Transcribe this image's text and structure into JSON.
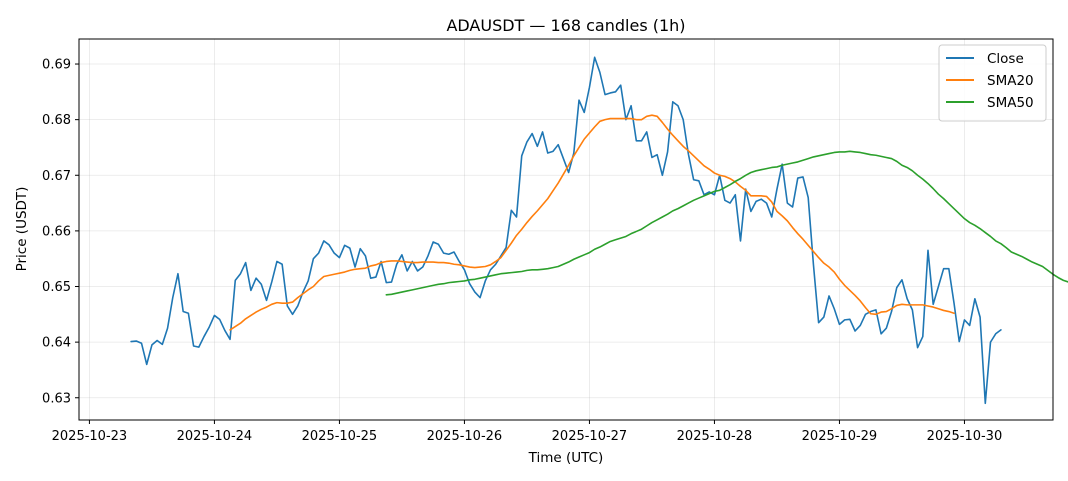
{
  "chart_data": {
    "type": "line",
    "title": "ADAUSDT — 168 candles (1h)",
    "xlabel": "Time (UTC)",
    "ylabel": "Price (USDT)",
    "x_ticks": [
      "2025-10-23",
      "2025-10-24",
      "2025-10-25",
      "2025-10-26",
      "2025-10-27",
      "2025-10-28",
      "2025-10-29",
      "2025-10-30"
    ],
    "y_ticks": [
      0.63,
      0.64,
      0.65,
      0.66,
      0.67,
      0.68,
      0.69
    ],
    "x_start": "2025-10-23 08:00",
    "x_end": "2025-10-30 07:00",
    "xlim": [
      "2025-10-22 22:00",
      "2025-10-30 17:00"
    ],
    "ylim": [
      0.626,
      0.6945
    ],
    "grid": true,
    "legend_position": "top-right",
    "series": [
      {
        "name": "Close",
        "color": "#1f77b4",
        "start_index": 0,
        "values": [
          0.6401,
          0.6402,
          0.6398,
          0.636,
          0.6395,
          0.6403,
          0.6396,
          0.6425,
          0.648,
          0.6523,
          0.6455,
          0.6452,
          0.6393,
          0.6391,
          0.641,
          0.6427,
          0.6448,
          0.6441,
          0.6421,
          0.6405,
          0.6511,
          0.6523,
          0.6543,
          0.6493,
          0.6515,
          0.6504,
          0.6475,
          0.6508,
          0.6545,
          0.654,
          0.6465,
          0.645,
          0.6465,
          0.649,
          0.651,
          0.655,
          0.656,
          0.6582,
          0.6575,
          0.656,
          0.6552,
          0.6574,
          0.6569,
          0.6535,
          0.6568,
          0.6555,
          0.6515,
          0.6517,
          0.6545,
          0.6507,
          0.6508,
          0.654,
          0.6557,
          0.6528,
          0.6545,
          0.6528,
          0.6535,
          0.6555,
          0.658,
          0.6576,
          0.656,
          0.6558,
          0.6562,
          0.6545,
          0.653,
          0.6505,
          0.649,
          0.648,
          0.651,
          0.653,
          0.654,
          0.6555,
          0.657,
          0.6637,
          0.6625,
          0.6735,
          0.676,
          0.6775,
          0.6752,
          0.6778,
          0.674,
          0.6743,
          0.6755,
          0.673,
          0.6705,
          0.674,
          0.6835,
          0.6813,
          0.6858,
          0.6912,
          0.6885,
          0.6845,
          0.6848,
          0.685,
          0.6862,
          0.68,
          0.6825,
          0.6762,
          0.6762,
          0.6778,
          0.6732,
          0.6737,
          0.67,
          0.6742,
          0.6832,
          0.6825,
          0.68,
          0.6738,
          0.6692,
          0.669,
          0.6665,
          0.667,
          0.6665,
          0.67,
          0.6655,
          0.665,
          0.6665,
          0.6582,
          0.6675,
          0.6635,
          0.6653,
          0.6657,
          0.665,
          0.6625,
          0.6675,
          0.672,
          0.665,
          0.6643,
          0.6695,
          0.6697,
          0.666,
          0.654,
          0.6435,
          0.6445,
          0.6483,
          0.646,
          0.6432,
          0.644,
          0.6441,
          0.642,
          0.643,
          0.645,
          0.6455,
          0.6458,
          0.6415,
          0.6425,
          0.6455,
          0.6498,
          0.6512,
          0.6478,
          0.6458,
          0.639,
          0.641,
          0.6565,
          0.6468,
          0.65,
          0.6532,
          0.6532,
          0.647,
          0.6401,
          0.644,
          0.643,
          0.6478,
          0.6445,
          0.629,
          0.64,
          0.6415,
          0.6422
        ]
      },
      {
        "name": "SMA20",
        "color": "#ff7f0e",
        "start_index": 19,
        "values": [
          0.6422,
          0.6428,
          0.6434,
          0.6442,
          0.6448,
          0.6454,
          0.6459,
          0.6463,
          0.6468,
          0.6471,
          0.647,
          0.647,
          0.6472,
          0.648,
          0.6487,
          0.6494,
          0.65,
          0.651,
          0.6518,
          0.652,
          0.6522,
          0.6524,
          0.6526,
          0.6529,
          0.6531,
          0.6532,
          0.6533,
          0.6537,
          0.6539,
          0.6543,
          0.6545,
          0.6546,
          0.6546,
          0.6545,
          0.6544,
          0.6543,
          0.6543,
          0.6544,
          0.6544,
          0.6544,
          0.6543,
          0.6543,
          0.6542,
          0.654,
          0.6539,
          0.6537,
          0.6535,
          0.6534,
          0.6535,
          0.6536,
          0.6539,
          0.6545,
          0.6552,
          0.6565,
          0.6578,
          0.6592,
          0.6603,
          0.6615,
          0.6626,
          0.6636,
          0.6647,
          0.6658,
          0.6672,
          0.6686,
          0.6702,
          0.6718,
          0.6735,
          0.675,
          0.6765,
          0.6776,
          0.6787,
          0.6797,
          0.68,
          0.6802,
          0.6802,
          0.6802,
          0.6802,
          0.6802,
          0.68,
          0.68,
          0.6806,
          0.6808,
          0.6806,
          0.6795,
          0.6783,
          0.6772,
          0.6762,
          0.6752,
          0.6744,
          0.6735,
          0.6726,
          0.6717,
          0.6711,
          0.6704,
          0.67,
          0.6698,
          0.6694,
          0.6688,
          0.668,
          0.6673,
          0.6663,
          0.6663,
          0.6663,
          0.6662,
          0.6652,
          0.6635,
          0.6627,
          0.6618,
          0.6606,
          0.6595,
          0.6585,
          0.6574,
          0.6563,
          0.6552,
          0.6542,
          0.6535,
          0.6526,
          0.6513,
          0.6502,
          0.6493,
          0.6484,
          0.6474,
          0.6462,
          0.6451,
          0.645,
          0.6454,
          0.6455,
          0.646,
          0.6466,
          0.6468,
          0.6467,
          0.6467,
          0.6467,
          0.6467,
          0.6465,
          0.6463,
          0.646,
          0.6457,
          0.6455,
          0.6452
        ]
      },
      {
        "name": "SMA50",
        "color": "#2ca02c",
        "start_index": 49,
        "values": [
          0.6485,
          0.6486,
          0.6488,
          0.649,
          0.6492,
          0.6494,
          0.6496,
          0.6498,
          0.65,
          0.6502,
          0.6504,
          0.6505,
          0.6507,
          0.6508,
          0.6509,
          0.651,
          0.6512,
          0.6513,
          0.6515,
          0.6517,
          0.6519,
          0.6521,
          0.6523,
          0.6524,
          0.6525,
          0.6526,
          0.6527,
          0.6529,
          0.653,
          0.653,
          0.6531,
          0.6532,
          0.6534,
          0.6536,
          0.654,
          0.6544,
          0.6549,
          0.6553,
          0.6557,
          0.6561,
          0.6567,
          0.6571,
          0.6576,
          0.6581,
          0.6584,
          0.6587,
          0.659,
          0.6595,
          0.6599,
          0.6603,
          0.6609,
          0.6615,
          0.662,
          0.6625,
          0.663,
          0.6636,
          0.664,
          0.6645,
          0.665,
          0.6655,
          0.6659,
          0.6663,
          0.6667,
          0.6671,
          0.6673,
          0.6678,
          0.6683,
          0.6689,
          0.6694,
          0.67,
          0.6705,
          0.6708,
          0.671,
          0.6712,
          0.6714,
          0.6715,
          0.6718,
          0.672,
          0.6722,
          0.6724,
          0.6727,
          0.673,
          0.6733,
          0.6735,
          0.6737,
          0.6739,
          0.6741,
          0.6742,
          0.6742,
          0.6743,
          0.6742,
          0.6741,
          0.6739,
          0.6737,
          0.6736,
          0.6734,
          0.6732,
          0.673,
          0.6725,
          0.6718,
          0.6714,
          0.6708,
          0.67,
          0.6693,
          0.6685,
          0.6676,
          0.6666,
          0.6658,
          0.6649,
          0.664,
          0.6631,
          0.6622,
          0.6615,
          0.661,
          0.6604,
          0.6597,
          0.659,
          0.6582,
          0.6577,
          0.657,
          0.6562,
          0.6558,
          0.6554,
          0.6549,
          0.6544,
          0.654,
          0.6536,
          0.6529,
          0.6522,
          0.6516,
          0.6511,
          0.6508
        ]
      }
    ]
  }
}
